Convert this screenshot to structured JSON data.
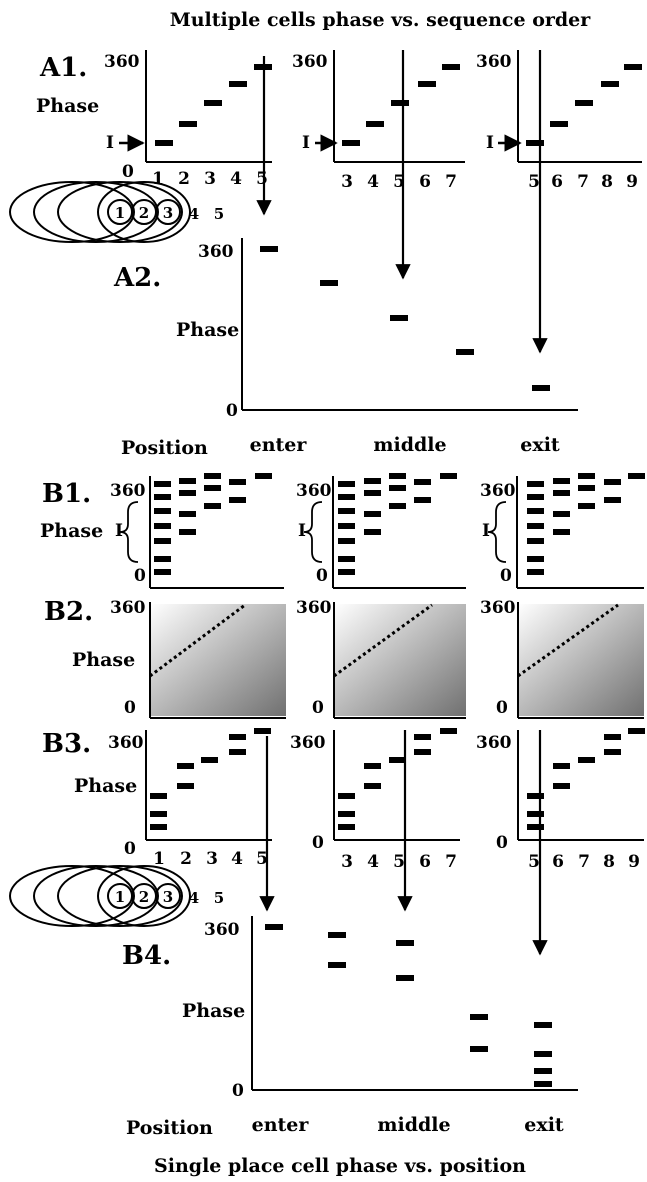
{
  "titles": {
    "top": "Multiple cells phase vs. sequence order",
    "bottom": "Single place cell  phase vs. position"
  },
  "panels": {
    "A1": "A1.",
    "A2": "A2.",
    "B1": "B1.",
    "B2": "B2.",
    "B3": "B3.",
    "B4": "B4."
  },
  "axis": {
    "phase": "Phase",
    "position": "Position",
    "max": "360",
    "zero": "0",
    "interval": "I"
  },
  "positions": {
    "enter": "enter",
    "middle": "middle",
    "exit": "exit"
  },
  "sequence_ticks": [
    [
      "1",
      "2",
      "3",
      "4",
      "5"
    ],
    [
      "3",
      "4",
      "5",
      "6",
      "7"
    ],
    [
      "5",
      "6",
      "7",
      "8",
      "9"
    ]
  ],
  "place_fields": [
    "1",
    "2",
    "3",
    "4",
    "5"
  ],
  "colors": {
    "ink": "#000000",
    "gradient_light": "#ffffff",
    "gradient_dark": "#707070"
  }
}
